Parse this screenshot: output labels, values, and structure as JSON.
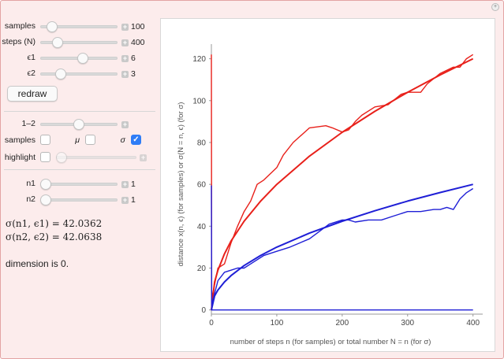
{
  "controls": {
    "samples": {
      "label": "samples",
      "value": "100",
      "frac": 0.12
    },
    "steps": {
      "label": "steps (N)",
      "value": "400",
      "frac": 0.18
    },
    "eps1": {
      "label": "ϵ1",
      "value": "6",
      "frac": 0.52
    },
    "eps2": {
      "label": "ϵ2",
      "value": "3",
      "frac": 0.25
    },
    "redraw_label": "redraw",
    "mode_slider": {
      "label": "1–2",
      "frac": 0.5
    },
    "checkboxes": {
      "samples_label": "samples",
      "mu_label": "μ",
      "sigma_label": "σ",
      "samples_checked": false,
      "mu_checked": false,
      "sigma_checked": true
    },
    "highlight": {
      "label": "highlight",
      "checked": false
    },
    "n1": {
      "label": "n1",
      "value": "1",
      "frac": 0.0
    },
    "n2": {
      "label": "n2",
      "value": "1",
      "frac": 0.0
    }
  },
  "outputs": {
    "sigma1": "σ(n1, ϵ1) = 42.0362",
    "sigma2": "σ(n2, ϵ2) = 42.0638",
    "dimension": "dimension is 0."
  },
  "colors": {
    "series1": "#e8201a",
    "series2": "#1f1fd6",
    "accent": "#2f7df6"
  },
  "chart_data": {
    "type": "line",
    "xlabel": "number of steps n (for samples) or total number N = n (for σ)",
    "ylabel": "distance x(n, ϵ) (for samples) or σ(N = n, ϵ) (for σ)",
    "xlim": [
      0,
      410
    ],
    "ylim": [
      -2,
      124
    ],
    "xticks": [
      0,
      100,
      200,
      300,
      400
    ],
    "yticks": [
      0,
      20,
      40,
      60,
      80,
      100,
      120
    ],
    "series": [
      {
        "color": "red",
        "kind": "fit",
        "x": [
          0,
          5,
          10,
          20,
          30,
          50,
          75,
          100,
          150,
          200,
          250,
          300,
          350,
          400
        ],
        "y": [
          0,
          13.4,
          19,
          26.8,
          32.9,
          42.4,
          51.9,
          60,
          73.5,
          84.9,
          94.9,
          104,
          112.3,
          120
        ]
      },
      {
        "color": "red",
        "kind": "sample",
        "x": [
          0,
          0.5,
          1,
          10,
          20,
          30,
          40,
          50,
          60,
          70,
          80,
          100,
          110,
          125,
          150,
          175,
          185,
          200,
          210,
          220,
          230,
          250,
          270,
          290,
          300,
          320,
          330,
          350,
          370,
          380,
          390,
          400
        ],
        "y": [
          122,
          0,
          6,
          20,
          22,
          32,
          40,
          47,
          52,
          60,
          62,
          68,
          74,
          80,
          87,
          88,
          87,
          85,
          86,
          90,
          93,
          97,
          98,
          103,
          104,
          104,
          108,
          113,
          116,
          116,
          120,
          122
        ]
      },
      {
        "color": "blue",
        "kind": "fit",
        "x": [
          0,
          5,
          10,
          20,
          30,
          50,
          75,
          100,
          150,
          200,
          250,
          300,
          350,
          400
        ],
        "y": [
          0,
          6.7,
          9.5,
          13.4,
          16.4,
          21.2,
          26,
          30,
          36.7,
          42.4,
          47.4,
          52,
          56.1,
          60
        ]
      },
      {
        "color": "blue",
        "kind": "sample",
        "x": [
          0,
          0.5,
          1,
          10,
          20,
          30,
          40,
          50,
          60,
          80,
          100,
          120,
          150,
          180,
          200,
          210,
          220,
          240,
          260,
          280,
          300,
          320,
          340,
          350,
          360,
          370,
          380,
          390,
          400
        ],
        "y": [
          59.5,
          0,
          3,
          14,
          18,
          19,
          20,
          20,
          22,
          26,
          28,
          30,
          34,
          41,
          43,
          43,
          42,
          43,
          43,
          45,
          47,
          47,
          48,
          48,
          49,
          48,
          53,
          56,
          58
        ]
      },
      {
        "color": "blue",
        "kind": "baseline",
        "x": [
          0,
          400
        ],
        "y": [
          0,
          0
        ]
      }
    ]
  }
}
